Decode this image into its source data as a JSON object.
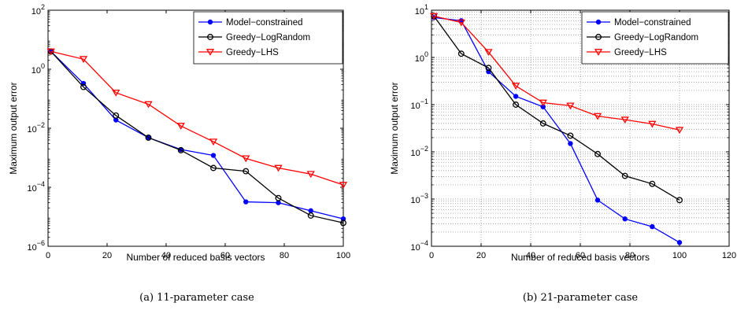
{
  "chart_data": [
    {
      "type": "line",
      "caption": "(a)  11-parameter case",
      "xlabel": "Number of reduced basis vectors",
      "ylabel": "Maximum output error",
      "xlim": [
        0,
        100
      ],
      "ylim": [
        1e-06,
        100
      ],
      "yscale": "log",
      "grid": false,
      "legend_position": "top-right",
      "x_ticks": [
        {
          "value": 0,
          "label": "0"
        },
        {
          "value": 20,
          "label": "20"
        },
        {
          "value": 40,
          "label": "40"
        },
        {
          "value": 60,
          "label": "60"
        },
        {
          "value": 80,
          "label": "80"
        },
        {
          "value": 100,
          "label": "100"
        }
      ],
      "y_ticks": [
        {
          "value": 1e-06,
          "base": "10",
          "exp": "−6"
        },
        {
          "value": 0.0001,
          "base": "10",
          "exp": "−4"
        },
        {
          "value": 0.01,
          "base": "10",
          "exp": "−2"
        },
        {
          "value": 1,
          "base": "10",
          "exp": "0"
        },
        {
          "value": 100,
          "base": "10",
          "exp": "2"
        }
      ],
      "series": [
        {
          "name": "Model−constrained",
          "color": "#0000ff",
          "marker": "dot",
          "x": [
            1,
            12,
            23,
            34,
            45,
            56,
            67,
            78,
            89,
            100
          ],
          "y": [
            4,
            0.33,
            0.019,
            0.0048,
            0.0019,
            0.0012,
            3.2e-05,
            3e-05,
            1.6e-05,
            8.5e-06
          ]
        },
        {
          "name": "Greedy−LogRandom",
          "color": "#000000",
          "marker": "circle",
          "x": [
            1,
            12,
            23,
            34,
            45,
            56,
            67,
            78,
            89,
            100
          ],
          "y": [
            4,
            0.25,
            0.027,
            0.0048,
            0.0018,
            0.00045,
            0.00035,
            4.3e-05,
            1.1e-05,
            6.2e-06
          ]
        },
        {
          "name": "Greedy−LHS",
          "color": "#ff0000",
          "marker": "triangle-down",
          "x": [
            1,
            12,
            23,
            34,
            45,
            56,
            67,
            78,
            89,
            100
          ],
          "y": [
            4,
            2.2,
            0.16,
            0.065,
            0.012,
            0.0035,
            0.00095,
            0.00045,
            0.00028,
            0.00012
          ]
        }
      ]
    },
    {
      "type": "line",
      "caption": "(b)  21-parameter case",
      "xlabel": "Number of reduced basis vectors",
      "ylabel": "Maximum output error",
      "xlim": [
        0,
        120
      ],
      "ylim": [
        0.0001,
        10
      ],
      "yscale": "log",
      "grid": true,
      "legend_position": "top-right",
      "x_ticks": [
        {
          "value": 0,
          "label": "0"
        },
        {
          "value": 20,
          "label": "20"
        },
        {
          "value": 40,
          "label": "40"
        },
        {
          "value": 60,
          "label": "60"
        },
        {
          "value": 80,
          "label": "80"
        },
        {
          "value": 100,
          "label": "100"
        },
        {
          "value": 120,
          "label": "120"
        }
      ],
      "y_ticks": [
        {
          "value": 0.0001,
          "base": "10",
          "exp": "−4"
        },
        {
          "value": 0.001,
          "base": "10",
          "exp": "−3"
        },
        {
          "value": 0.01,
          "base": "10",
          "exp": "−2"
        },
        {
          "value": 0.1,
          "base": "10",
          "exp": "−1"
        },
        {
          "value": 1,
          "base": "10",
          "exp": "0"
        },
        {
          "value": 10,
          "base": "10",
          "exp": "1"
        }
      ],
      "series": [
        {
          "name": "Model−constrained",
          "color": "#0000ff",
          "marker": "dot",
          "x": [
            1,
            12,
            23,
            34,
            45,
            56,
            67,
            78,
            89,
            100
          ],
          "y": [
            7,
            6,
            0.5,
            0.15,
            0.09,
            0.015,
            0.00095,
            0.00038,
            0.00026,
            0.00012
          ]
        },
        {
          "name": "Greedy−LogRandom",
          "color": "#000000",
          "marker": "circle",
          "x": [
            1,
            12,
            23,
            34,
            45,
            56,
            67,
            78,
            89,
            100
          ],
          "y": [
            7.5,
            1.2,
            0.6,
            0.1,
            0.04,
            0.022,
            0.009,
            0.0031,
            0.0021,
            0.00095
          ]
        },
        {
          "name": "Greedy−LHS",
          "color": "#ff0000",
          "marker": "triangle-down",
          "x": [
            1,
            12,
            23,
            34,
            45,
            56,
            67,
            78,
            89,
            100
          ],
          "y": [
            7.5,
            5.5,
            1.3,
            0.25,
            0.11,
            0.095,
            0.057,
            0.048,
            0.039,
            0.029
          ]
        }
      ]
    }
  ]
}
